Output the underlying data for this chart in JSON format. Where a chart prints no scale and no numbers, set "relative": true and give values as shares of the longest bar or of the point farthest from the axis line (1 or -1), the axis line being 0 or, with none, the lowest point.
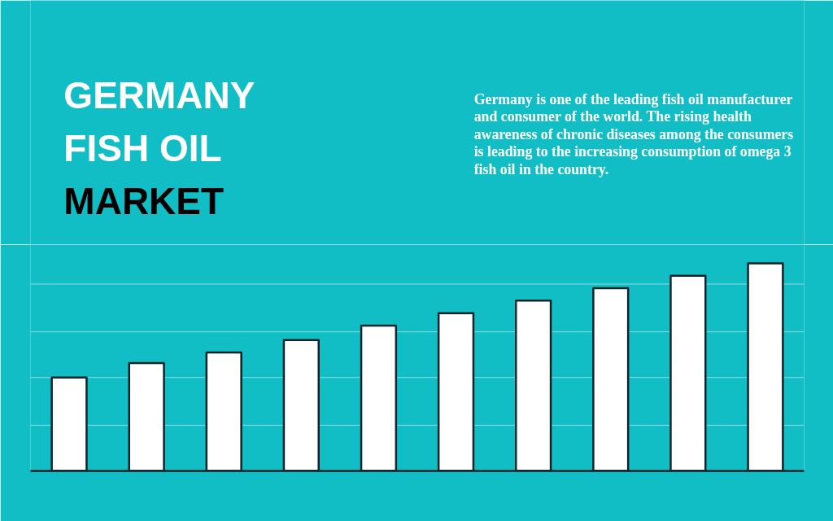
{
  "chart_data": {
    "type": "bar",
    "title": "GERMANY\nFISH OIL\nMARKET",
    "annotations": [
      "Germany is one of the leading fish oil manufacturer\nand consumer of the world. The rising health\nawareness of chronic diseases among the consumers\nis leading to the increasing consumption of omega 3\nfish oil in the country."
    ],
    "categories": [
      null,
      null,
      null,
      null,
      null,
      null,
      null,
      null,
      null,
      null
    ],
    "values": [
      0.45,
      0.52,
      0.57,
      0.63,
      0.7,
      0.76,
      0.82,
      0.88,
      0.94,
      1
    ],
    "color": "#ffffff",
    "relative": true,
    "ref_lines": [
      {
        "axis": "y",
        "value": 0.22,
        "color": "#8edde0"
      },
      {
        "axis": "y",
        "value": 0.45,
        "color": "#8edde0"
      },
      {
        "axis": "y",
        "value": 0.67,
        "color": "#8edde0"
      },
      {
        "axis": "y",
        "value": 0.9,
        "color": "#8edde0"
      }
    ]
  }
}
